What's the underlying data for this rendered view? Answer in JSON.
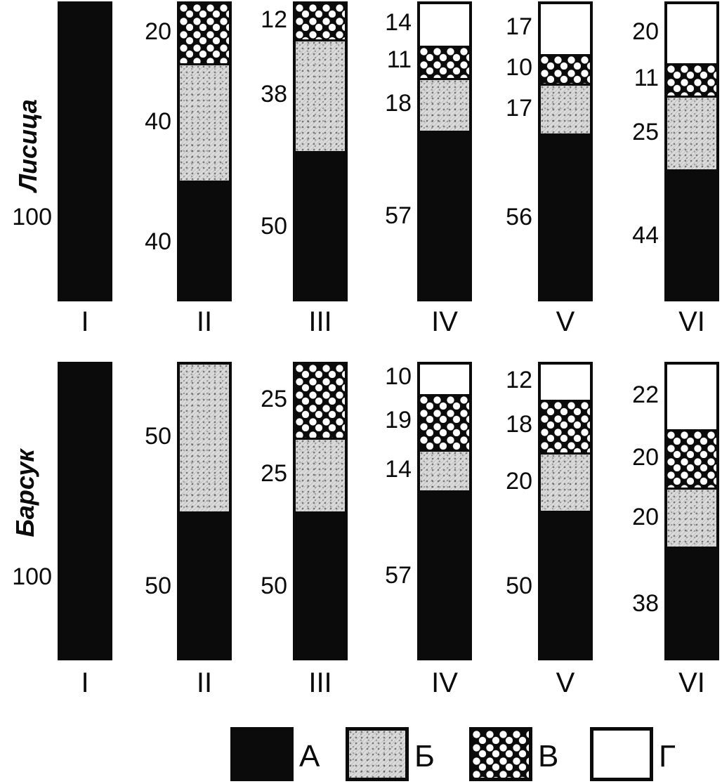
{
  "figure": {
    "background": "#ffffff",
    "ink": "#0b0b0b",
    "stipple_gray": "#dbdbdb"
  },
  "legend": {
    "items": [
      {
        "label": "А",
        "pattern": "solid-black",
        "swatch_color": "#0b0b0b"
      },
      {
        "label": "Б",
        "pattern": "gray-stipple",
        "swatch_color": "#dbdbdb"
      },
      {
        "label": "В",
        "pattern": "black-white-dots",
        "swatch_color": "#0b0b0b"
      },
      {
        "label": "Г",
        "pattern": "white-open",
        "swatch_color": "#ffffff"
      }
    ]
  },
  "chart_data": [
    {
      "type": "bar",
      "stacked": true,
      "group": "Лисица",
      "categories": [
        "I",
        "II",
        "III",
        "IV",
        "V",
        "VI"
      ],
      "series": [
        {
          "name": "А",
          "values": [
            100,
            40,
            50,
            57,
            56,
            44
          ]
        },
        {
          "name": "Б",
          "values": [
            0,
            40,
            38,
            18,
            17,
            25
          ]
        },
        {
          "name": "В",
          "values": [
            0,
            20,
            12,
            11,
            10,
            11
          ]
        },
        {
          "name": "Г",
          "values": [
            0,
            0,
            0,
            14,
            17,
            20
          ]
        }
      ],
      "ylim": [
        0,
        100
      ],
      "value_labels": true,
      "legend_position": "bottom"
    },
    {
      "type": "bar",
      "stacked": true,
      "group": "Барсук",
      "categories": [
        "I",
        "II",
        "III",
        "IV",
        "V",
        "VI"
      ],
      "series": [
        {
          "name": "А",
          "values": [
            100,
            50,
            50,
            57,
            50,
            38
          ]
        },
        {
          "name": "Б",
          "values": [
            0,
            50,
            25,
            14,
            20,
            20
          ]
        },
        {
          "name": "В",
          "values": [
            0,
            0,
            25,
            19,
            18,
            20
          ]
        },
        {
          "name": "Г",
          "values": [
            0,
            0,
            0,
            10,
            12,
            22
          ]
        }
      ],
      "ylim": [
        0,
        100
      ],
      "value_labels": true,
      "legend_position": "bottom"
    }
  ]
}
